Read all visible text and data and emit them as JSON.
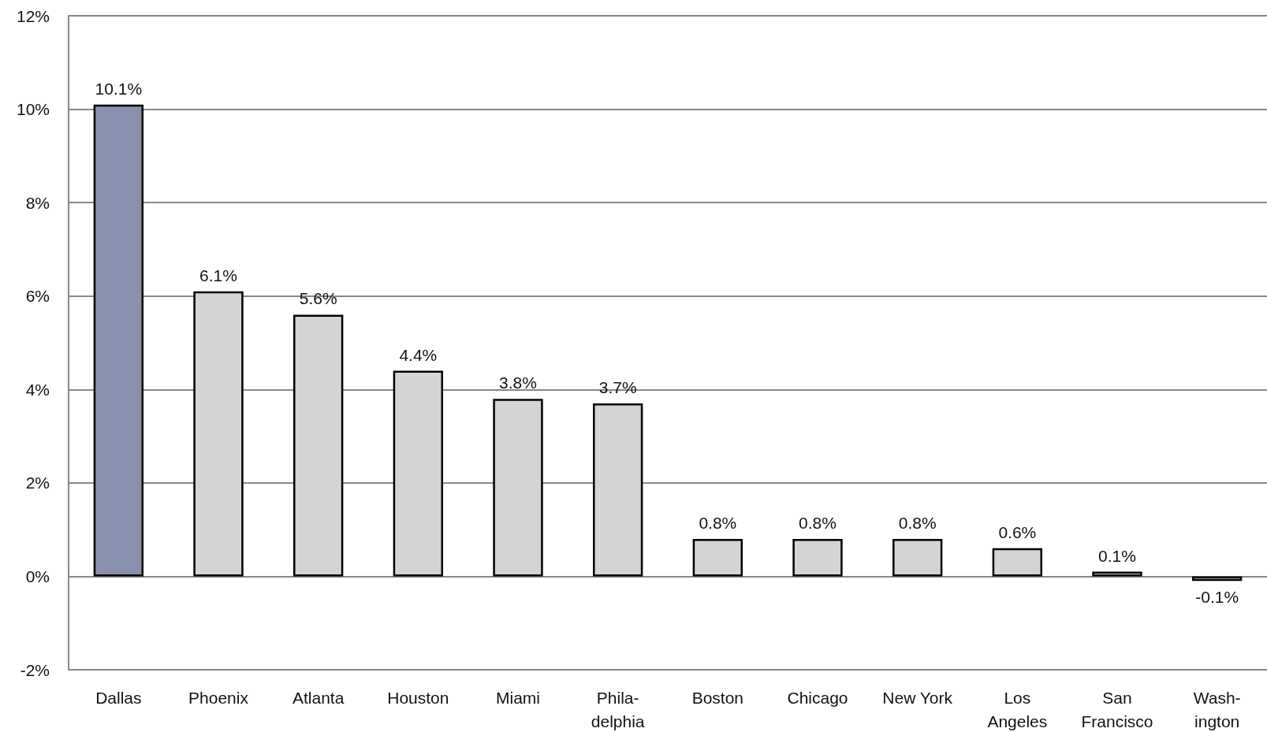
{
  "chart_data": {
    "type": "bar",
    "categories": [
      "Dallas",
      "Phoenix",
      "Atlanta",
      "Houston",
      "Miami",
      "Phila-\ndelphia",
      "Boston",
      "Chicago",
      "New York",
      "Los\nAngeles",
      "San\nFrancisco",
      "Wash-\nington"
    ],
    "values": [
      10.1,
      6.1,
      5.6,
      4.4,
      3.8,
      3.7,
      0.8,
      0.8,
      0.8,
      0.6,
      0.1,
      -0.1
    ],
    "colors": [
      "#8890ad",
      "#d4d4d4",
      "#d4d4d4",
      "#d4d4d4",
      "#d4d4d4",
      "#d4d4d4",
      "#d4d4d4",
      "#d4d4d4",
      "#d4d4d4",
      "#d4d4d4",
      "#d4d4d4",
      "#d4d4d4"
    ],
    "value_labels": [
      "10.1%",
      "6.1%",
      "5.6%",
      "4.4%",
      "3.8%",
      "3.7%",
      "0.8%",
      "0.8%",
      "0.8%",
      "0.6%",
      "0.1%",
      "-0.1%"
    ],
    "ylim": [
      -2,
      12
    ],
    "yticks": [
      {
        "value": -2,
        "label": "-2%"
      },
      {
        "value": 0,
        "label": "0%"
      },
      {
        "value": 2,
        "label": "2%"
      },
      {
        "value": 4,
        "label": "4%"
      },
      {
        "value": 6,
        "label": "6%"
      },
      {
        "value": 8,
        "label": "8%"
      },
      {
        "value": 10,
        "label": "10%"
      },
      {
        "value": 12,
        "label": "12%"
      }
    ],
    "grid": "y"
  }
}
